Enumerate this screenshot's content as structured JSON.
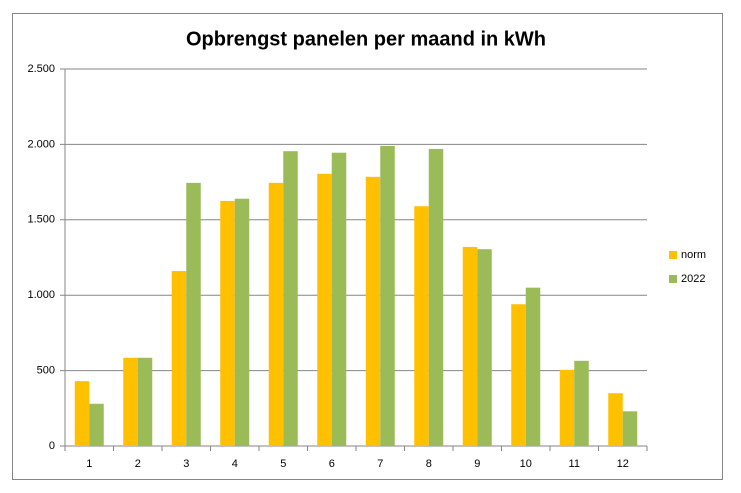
{
  "chart_data": {
    "type": "bar",
    "title": "Opbrengst panelen per maand in kWh",
    "categories": [
      "1",
      "2",
      "3",
      "4",
      "5",
      "6",
      "7",
      "8",
      "9",
      "10",
      "11",
      "12"
    ],
    "series": [
      {
        "name": "norm",
        "color": "#ffc000",
        "values": [
          430,
          585,
          1160,
          1625,
          1745,
          1805,
          1785,
          1590,
          1320,
          940,
          505,
          350
        ]
      },
      {
        "name": "2022",
        "color": "#9bbb59",
        "values": [
          280,
          585,
          1745,
          1640,
          1955,
          1945,
          1990,
          1970,
          1305,
          1050,
          565,
          230
        ]
      }
    ],
    "ylim": [
      0,
      2500
    ],
    "yticks": [
      0,
      500,
      {
        "value": 1000,
        "label": "1.000"
      },
      {
        "value": 1500,
        "label": "1.500"
      },
      {
        "value": 2000,
        "label": "2.000"
      },
      {
        "value": 2500,
        "label": "2.500"
      }
    ],
    "grid": true,
    "legend": "right"
  }
}
